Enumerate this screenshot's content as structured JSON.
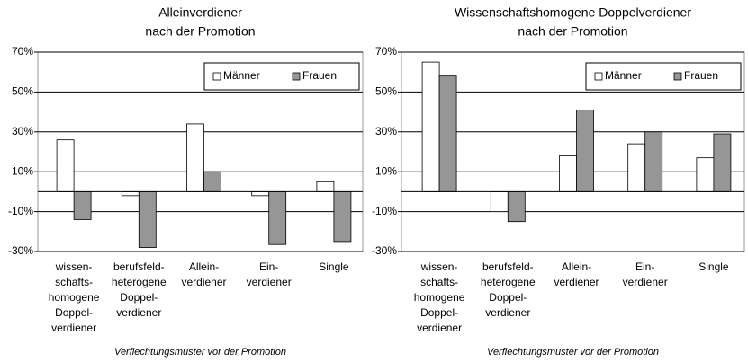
{
  "chart_data": [
    {
      "type": "bar",
      "title": [
        "Alleinverdiener",
        "nach der Promotion"
      ],
      "x_label": "Verflechtungsmuster vor der Promotion",
      "categories": [
        [
          "wissen-",
          "schafts-",
          "homogene",
          "Doppel-",
          "verdiener"
        ],
        [
          "berufsfeld-",
          "heterogene",
          "Doppel-",
          "verdiener"
        ],
        [
          "Allein-",
          "verdiener"
        ],
        [
          "Ein-",
          "verdiener"
        ],
        [
          "Single"
        ]
      ],
      "series": [
        {
          "name": "Männer",
          "color": "#ffffff",
          "values": [
            26,
            -2,
            34,
            -2,
            5
          ]
        },
        {
          "name": "Frauen",
          "color": "#969696",
          "values": [
            -14,
            -28,
            10,
            -26.5,
            -25
          ]
        }
      ],
      "ylim": [
        -30,
        70
      ],
      "yticks": [
        {
          "value": -30,
          "label": "-30%"
        },
        {
          "value": -10,
          "label": "-10%"
        },
        {
          "value": 10,
          "label": "10%"
        },
        {
          "value": 30,
          "label": "30%"
        },
        {
          "value": 50,
          "label": "50%"
        },
        {
          "value": 70,
          "label": "70%"
        }
      ],
      "grid": true,
      "legend": "top-right"
    },
    {
      "type": "bar",
      "title": [
        "Wissenschaftshomogene Doppelverdiener",
        "nach der Promotion"
      ],
      "x_label": "Verflechtungsmuster vor der Promotion",
      "categories": [
        [
          "wissen-",
          "schafts-",
          "homogene",
          "Doppel-",
          "verdiener"
        ],
        [
          "berufsfeld-",
          "heterogene",
          "Doppel-",
          "verdiener"
        ],
        [
          "Allein-",
          "verdiener"
        ],
        [
          "Ein-",
          "verdiener"
        ],
        [
          "Single"
        ]
      ],
      "series": [
        {
          "name": "Männer",
          "color": "#ffffff",
          "values": [
            65,
            -10,
            18,
            24,
            17
          ]
        },
        {
          "name": "Frauen",
          "color": "#969696",
          "values": [
            58,
            -15,
            41,
            30,
            29
          ]
        }
      ],
      "ylim": [
        -30,
        70
      ],
      "yticks": [
        {
          "value": -30,
          "label": "-30%"
        },
        {
          "value": -10,
          "label": "-10%"
        },
        {
          "value": 10,
          "label": "10%"
        },
        {
          "value": 30,
          "label": "30%"
        },
        {
          "value": 50,
          "label": "50%"
        },
        {
          "value": 70,
          "label": "70%"
        }
      ],
      "grid": true,
      "legend": "top-right"
    }
  ]
}
